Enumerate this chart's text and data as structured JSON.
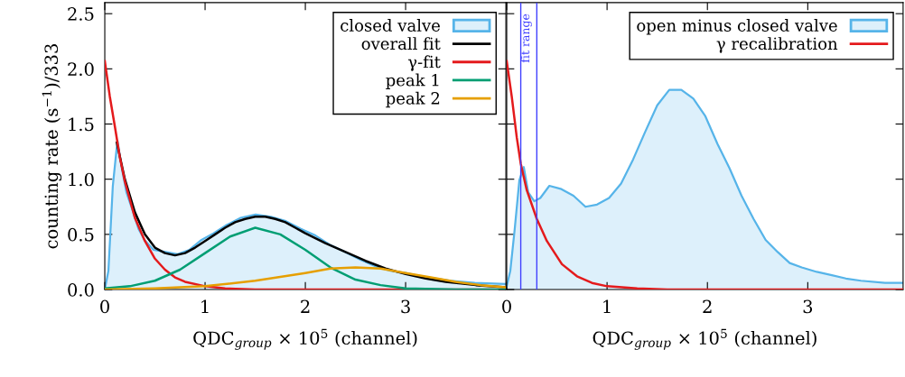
{
  "chart_data": [
    {
      "type": "line",
      "xlabel": "QDC$_{group}$ × 10$^{5}$ (channel)",
      "ylabel": "counting rate (s$^{−1}$)/333",
      "xlim": [
        0,
        4
      ],
      "xticks": [
        0,
        1,
        2,
        3
      ],
      "ylim": [
        0,
        2.6
      ],
      "yticks": [
        {
          "value": 0,
          "label": "0.0"
        },
        {
          "value": 0.5,
          "label": "0.5"
        },
        {
          "value": 1,
          "label": "1.0"
        },
        {
          "value": 1.5,
          "label": "1.5"
        },
        {
          "value": 2,
          "label": "2.0"
        },
        {
          "value": 2.5,
          "label": "2.5"
        }
      ],
      "legend": "top right",
      "grid": false,
      "series": [
        {
          "name": "closed valve",
          "type": "area",
          "color": "#56b4e9",
          "x": [
            0,
            0.036,
            0.08,
            0.126,
            0.17,
            0.216,
            0.276,
            0.336,
            0.396,
            0.486,
            0.605,
            0.726,
            0.845,
            0.965,
            1.085,
            1.205,
            1.355,
            1.505,
            1.655,
            1.805,
            1.955,
            2.1,
            2.255,
            2.4,
            2.55,
            2.7,
            2.85,
            3.0,
            3.15,
            3.3,
            3.45,
            3.69,
            3.99
          ],
          "values": [
            0,
            0.17,
            0.94,
            1.35,
            1.1,
            0.88,
            0.72,
            0.55,
            0.45,
            0.36,
            0.34,
            0.32,
            0.36,
            0.45,
            0.51,
            0.58,
            0.65,
            0.68,
            0.66,
            0.62,
            0.55,
            0.49,
            0.4,
            0.34,
            0.27,
            0.21,
            0.17,
            0.15,
            0.12,
            0.1,
            0.08,
            0.06,
            0.05
          ]
        },
        {
          "name": "overall fit",
          "color": "#000000",
          "x": [
            0.12,
            0.2,
            0.3,
            0.4,
            0.5,
            0.6,
            0.7,
            0.8,
            0.9,
            1.0,
            1.1,
            1.2,
            1.3,
            1.4,
            1.5,
            1.6,
            1.7,
            1.8,
            1.9,
            2.0,
            2.2,
            2.4,
            2.6,
            2.8,
            3.0,
            3.2,
            3.4,
            3.7,
            4.0
          ],
          "values": [
            1.33,
            1.0,
            0.7,
            0.5,
            0.38,
            0.33,
            0.31,
            0.33,
            0.38,
            0.44,
            0.5,
            0.56,
            0.61,
            0.64,
            0.66,
            0.66,
            0.64,
            0.61,
            0.56,
            0.51,
            0.42,
            0.34,
            0.26,
            0.19,
            0.14,
            0.1,
            0.07,
            0.04,
            0.02
          ]
        },
        {
          "name": "γ-fit",
          "color": "#e41a1c",
          "x": [
            0,
            0.05,
            0.1,
            0.15,
            0.2,
            0.3,
            0.4,
            0.5,
            0.6,
            0.7,
            0.8,
            1.0,
            1.2,
            1.5,
            4.0
          ],
          "values": [
            2.07,
            1.75,
            1.48,
            1.2,
            0.98,
            0.65,
            0.44,
            0.28,
            0.18,
            0.11,
            0.07,
            0.03,
            0.01,
            0.0,
            0.0
          ]
        },
        {
          "name": "peak 1",
          "color": "#009e73",
          "x": [
            0,
            0.25,
            0.5,
            0.75,
            1.0,
            1.25,
            1.5,
            1.75,
            2.0,
            2.25,
            2.5,
            2.75,
            3.0,
            3.5,
            4.0
          ],
          "values": [
            0.01,
            0.03,
            0.08,
            0.18,
            0.33,
            0.48,
            0.56,
            0.5,
            0.36,
            0.2,
            0.09,
            0.04,
            0.01,
            0.0,
            0.0
          ]
        },
        {
          "name": "peak 2",
          "color": "#e69f00",
          "x": [
            0,
            0.5,
            1.0,
            1.5,
            2.0,
            2.25,
            2.5,
            2.75,
            3.0,
            3.25,
            3.5,
            3.75,
            4.0
          ],
          "values": [
            0.0,
            0.01,
            0.03,
            0.08,
            0.15,
            0.19,
            0.2,
            0.19,
            0.15,
            0.11,
            0.07,
            0.04,
            0.02
          ]
        }
      ]
    },
    {
      "type": "line",
      "xlabel": "QDC$_{group}$ × 10$^{5}$ (channel)",
      "xlim": [
        0,
        3.95
      ],
      "xticks": [
        0,
        1,
        2,
        3
      ],
      "ylim": [
        0,
        2.6
      ],
      "yticks": [
        {
          "value": 0,
          "label": null
        },
        {
          "value": 0.5,
          "label": null
        },
        {
          "value": 1,
          "label": null
        },
        {
          "value": 1.5,
          "label": null
        },
        {
          "value": 2,
          "label": null
        },
        {
          "value": 2.5,
          "label": null
        }
      ],
      "tick_labels": "x",
      "legend": "top right",
      "grid": false,
      "ref_lines": [
        {
          "axis": "x",
          "value": 0.14,
          "label": "fit range",
          "color": "#4040ff"
        },
        {
          "axis": "x",
          "value": 0.3,
          "color": "#4040ff"
        }
      ],
      "series": [
        {
          "name": "open minus closed valve",
          "type": "area",
          "color": "#56b4e9",
          "x": [
            0,
            0.036,
            0.08,
            0.126,
            0.17,
            0.215,
            0.275,
            0.335,
            0.425,
            0.545,
            0.665,
            0.785,
            0.9,
            1.02,
            1.14,
            1.26,
            1.38,
            1.5,
            1.62,
            1.74,
            1.86,
            1.98,
            2.1,
            2.22,
            2.34,
            2.46,
            2.58,
            2.7,
            2.82,
            2.94,
            3.09,
            3.24,
            3.38,
            3.53,
            3.77,
            3.95
          ],
          "values": [
            0.03,
            0.17,
            0.55,
            0.99,
            1.11,
            0.88,
            0.8,
            0.83,
            0.94,
            0.91,
            0.85,
            0.75,
            0.77,
            0.83,
            0.96,
            1.18,
            1.43,
            1.67,
            1.81,
            1.81,
            1.73,
            1.57,
            1.32,
            1.1,
            0.85,
            0.64,
            0.45,
            0.34,
            0.24,
            0.2,
            0.16,
            0.13,
            0.1,
            0.08,
            0.06,
            0.06
          ]
        },
        {
          "name": "γ recalibration",
          "color": "#e41a1c",
          "x": [
            0,
            0.05,
            0.1,
            0.14,
            0.2,
            0.3,
            0.4,
            0.55,
            0.7,
            0.85,
            1.0,
            1.3,
            1.6,
            3.95
          ],
          "values": [
            2.07,
            1.75,
            1.38,
            1.14,
            0.9,
            0.64,
            0.44,
            0.23,
            0.12,
            0.06,
            0.03,
            0.01,
            0.0,
            0.0
          ]
        }
      ]
    }
  ]
}
